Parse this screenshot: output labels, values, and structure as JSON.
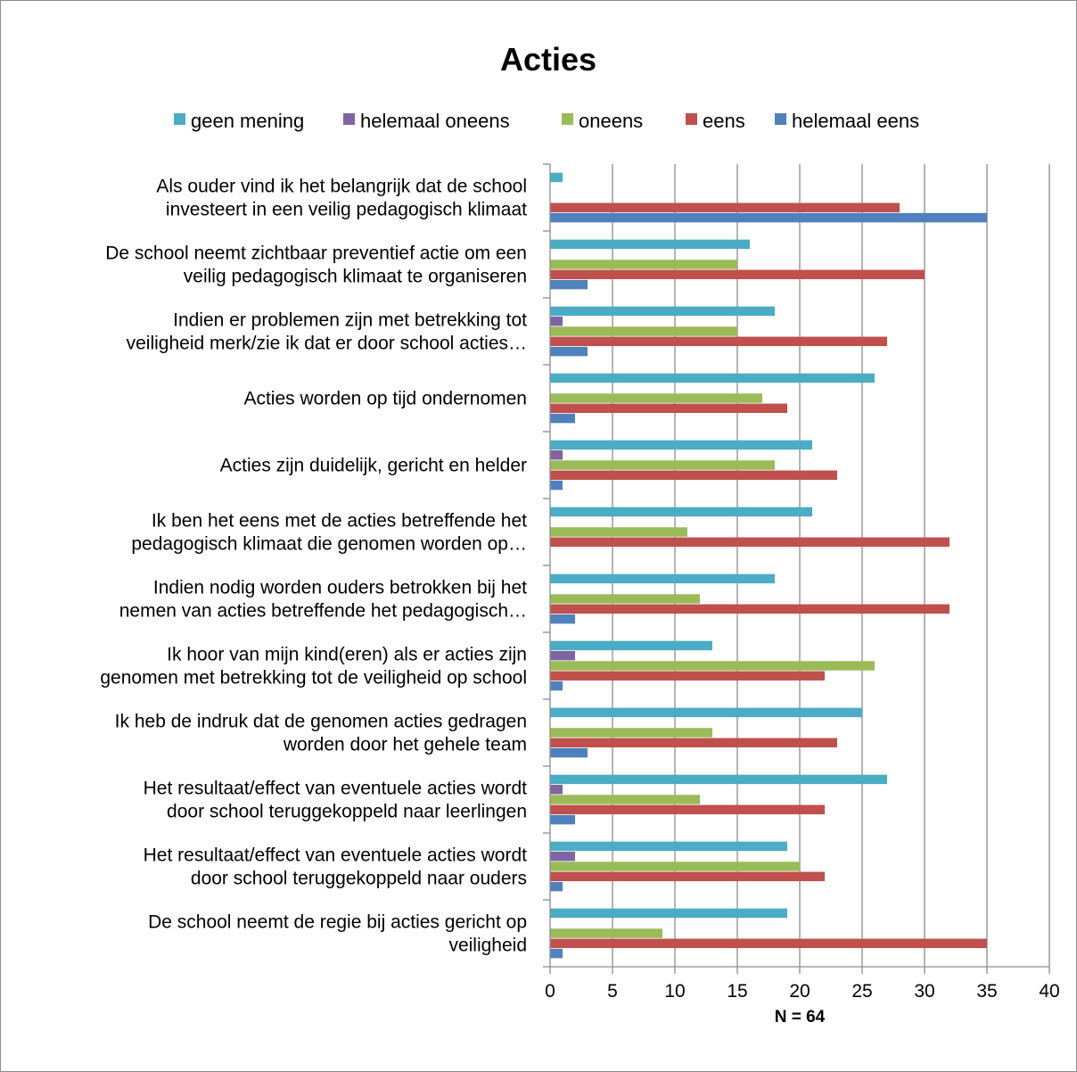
{
  "chart_data": {
    "type": "bar",
    "orientation": "horizontal",
    "title": "Acties",
    "xlabel": "N =  64",
    "xlim": [
      0,
      40
    ],
    "xticks": [
      0,
      5,
      10,
      15,
      20,
      25,
      30,
      35,
      40
    ],
    "grid": true,
    "legend_position": "top",
    "categories": [
      [
        "Als ouder vind ik het belangrijk dat de school",
        "investeert in een veilig pedagogisch klimaat"
      ],
      [
        "De school neemt zichtbaar preventief actie om een",
        "veilig pedagogisch klimaat te organiseren"
      ],
      [
        "Indien er problemen zijn met betrekking tot",
        "veiligheid merk/zie ik dat er door school acties…"
      ],
      [
        "Acties worden op tijd ondernomen"
      ],
      [
        "Acties zijn duidelijk, gericht en helder"
      ],
      [
        "Ik ben het eens met de acties betreffende het",
        "pedagogisch klimaat die genomen worden op…"
      ],
      [
        "Indien nodig worden ouders betrokken bij het",
        "nemen van acties betreffende het pedagogisch…"
      ],
      [
        "Ik hoor van mijn kind(eren) als er acties zijn",
        "genomen met betrekking tot de veiligheid op school"
      ],
      [
        "Ik heb de indruk dat de genomen acties gedragen",
        "worden door het gehele team"
      ],
      [
        "Het resultaat/effect van eventuele acties wordt",
        "door school teruggekoppeld naar leerlingen"
      ],
      [
        "Het resultaat/effect van eventuele acties wordt",
        "door school teruggekoppeld naar ouders"
      ],
      [
        "De school neemt de regie bij acties gericht op",
        "veiligheid"
      ]
    ],
    "series": [
      {
        "name": "geen mening",
        "color": "#4bacc6",
        "values": [
          1,
          16,
          18,
          26,
          21,
          21,
          18,
          13,
          25,
          27,
          19,
          19
        ]
      },
      {
        "name": "helemaal oneens",
        "color": "#8064a2",
        "values": [
          0,
          0,
          1,
          0,
          1,
          0,
          0,
          2,
          0,
          1,
          2,
          0
        ]
      },
      {
        "name": "oneens",
        "color": "#9bbb59",
        "values": [
          0,
          15,
          15,
          17,
          18,
          11,
          12,
          26,
          13,
          12,
          20,
          9
        ]
      },
      {
        "name": "eens",
        "color": "#c0504d",
        "values": [
          28,
          30,
          27,
          19,
          23,
          32,
          32,
          22,
          23,
          22,
          22,
          35
        ]
      },
      {
        "name": "helemaal eens",
        "color": "#4f81bd",
        "values": [
          35,
          3,
          3,
          2,
          1,
          0,
          2,
          1,
          3,
          2,
          1,
          1
        ]
      }
    ]
  }
}
